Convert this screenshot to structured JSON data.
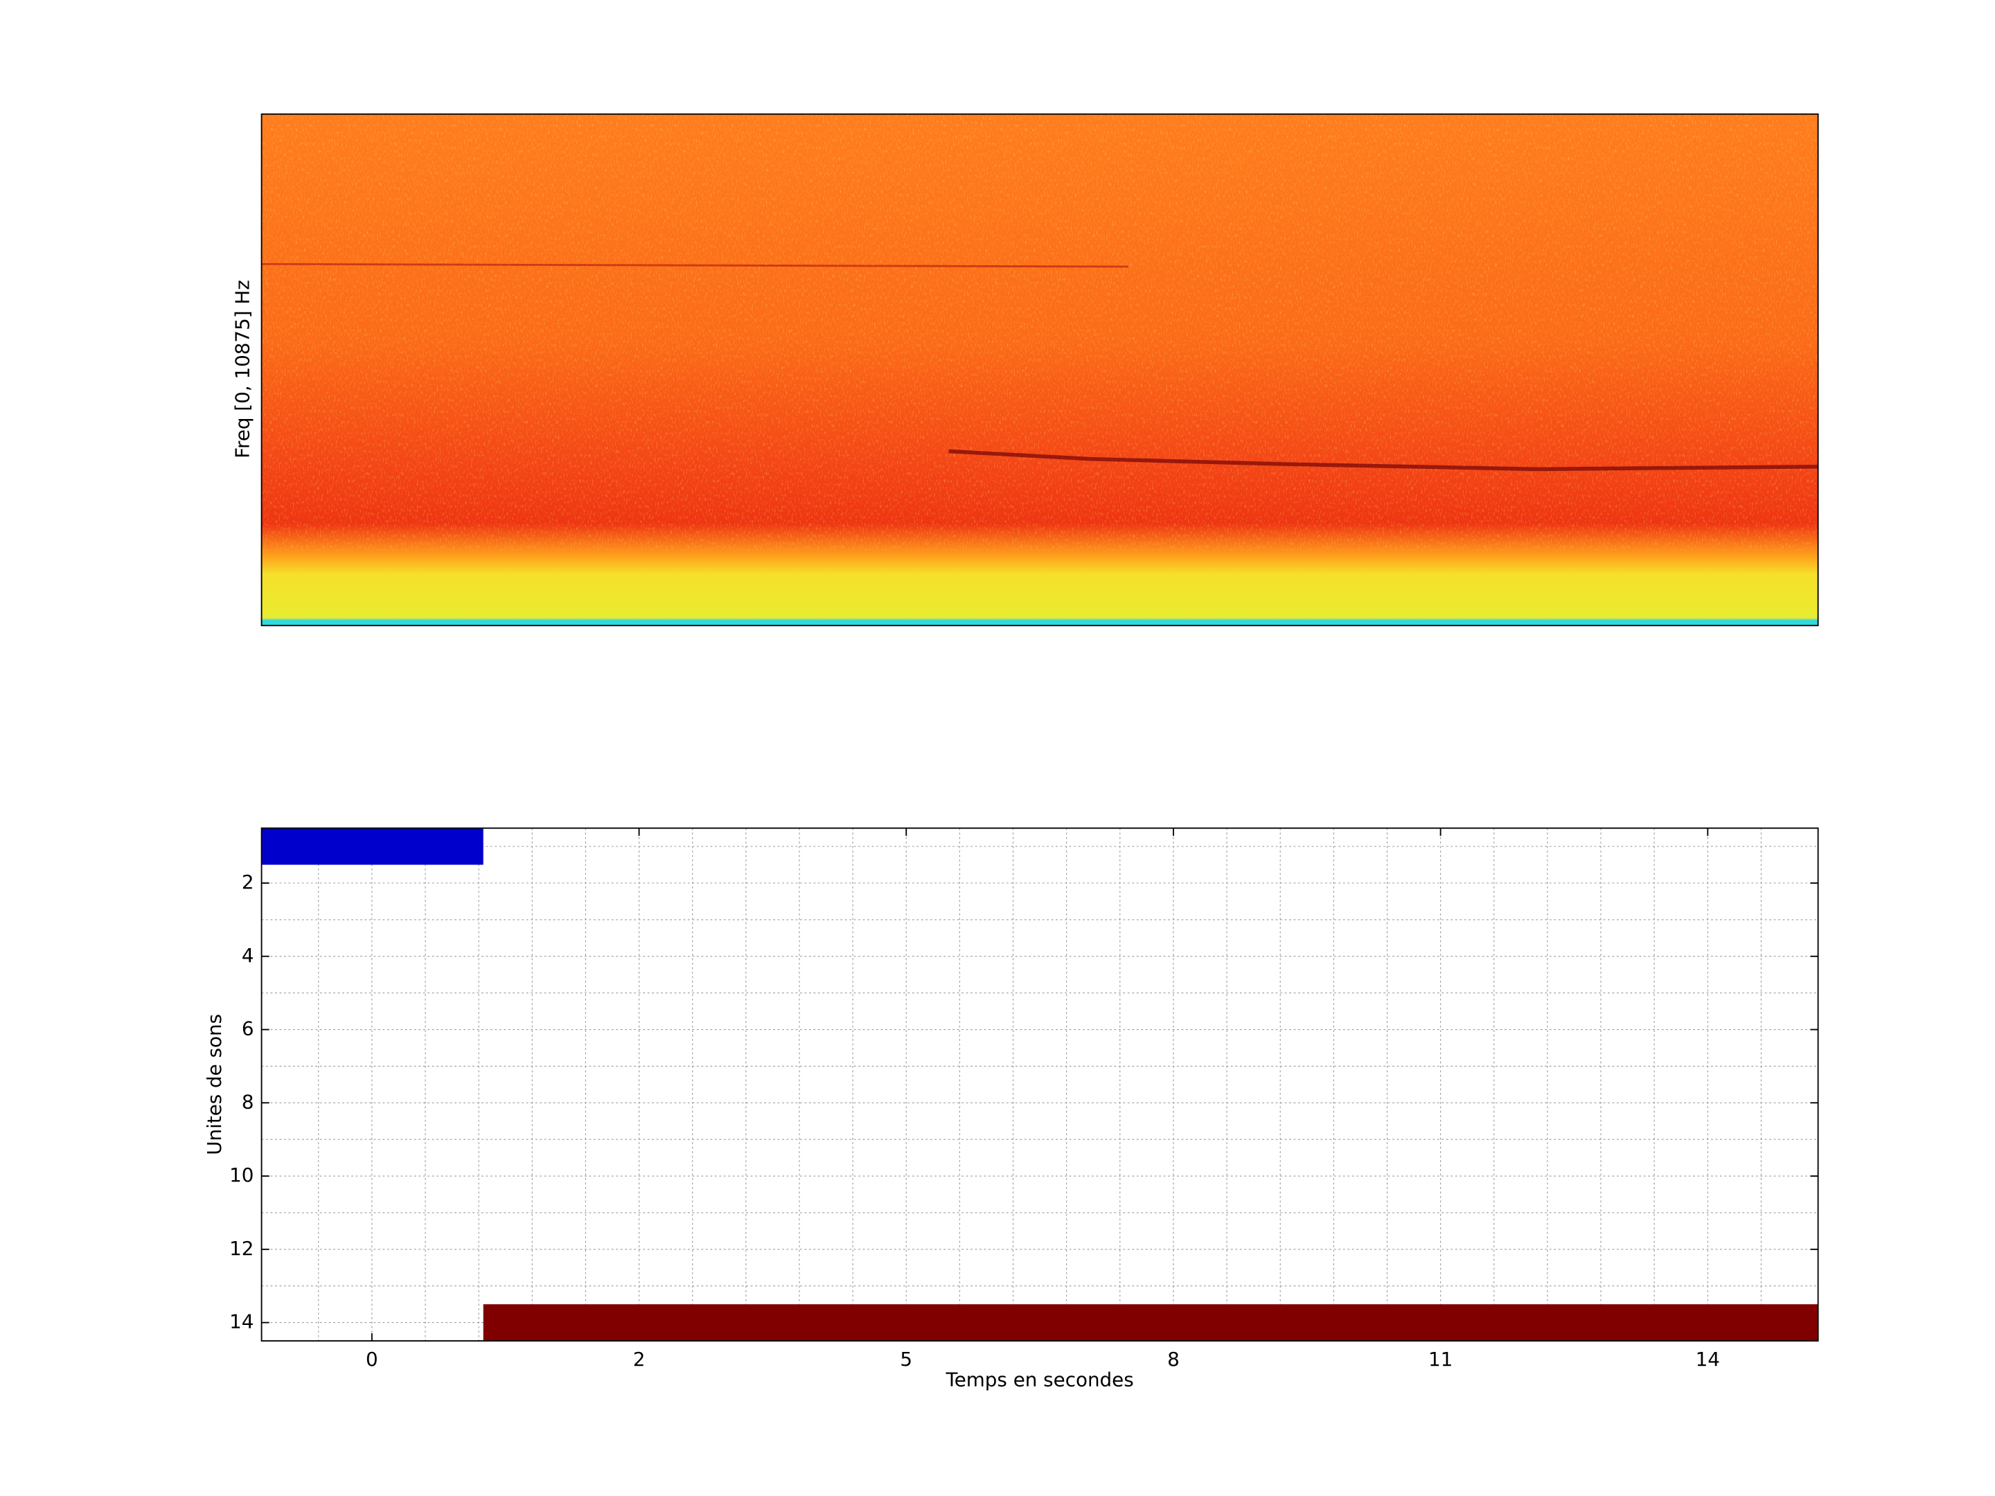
{
  "chart_data": [
    {
      "type": "spectrogram",
      "ylabel": "Freq [0, 10875] Hz"
    },
    {
      "type": "segments",
      "xlabel": "Temps en secondes",
      "ylabel": "Unites de sons",
      "xlim": [
        0.587,
        6.413
      ],
      "xticks": [
        {
          "value": 1,
          "label": "0"
        },
        {
          "value": 2,
          "label": "2"
        },
        {
          "value": 3,
          "label": "5"
        },
        {
          "value": 4,
          "label": "8"
        },
        {
          "value": 5,
          "label": "11"
        },
        {
          "value": 6,
          "label": "14"
        }
      ],
      "xminorticks": [
        0.8,
        1.2,
        1.4,
        1.6,
        1.8,
        2.2,
        2.4,
        2.6,
        2.8,
        3.2,
        3.4,
        3.6,
        3.8,
        4.2,
        4.4,
        4.6,
        4.8,
        5.2,
        5.4,
        5.6,
        5.8,
        6.2
      ],
      "ylim": [
        0.5,
        14.5
      ],
      "y_reversed": true,
      "yticks": [
        2,
        4,
        6,
        8,
        10,
        12,
        14
      ],
      "yminorticks": [
        1,
        3,
        5,
        7,
        9,
        11,
        13
      ],
      "grid": true,
      "segments": [
        {
          "unit": 1,
          "start": 0.587,
          "end": 1.417,
          "color": "#0000cc"
        },
        {
          "unit": 14,
          "start": 1.417,
          "end": 6.413,
          "color": "#800000"
        }
      ]
    }
  ]
}
